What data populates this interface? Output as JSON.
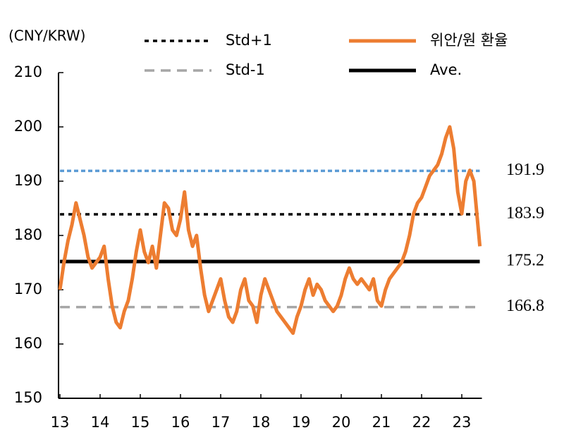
{
  "chart_data": {
    "type": "line",
    "y_label": "(CNY/KRW)",
    "xlim": [
      13,
      23.5
    ],
    "xticks": [
      13,
      14,
      15,
      16,
      17,
      18,
      19,
      20,
      21,
      22,
      23
    ],
    "ylim": [
      150,
      210
    ],
    "yticks": [
      150,
      160,
      170,
      180,
      190,
      200,
      210
    ],
    "x": [
      13.0,
      13.1,
      13.2,
      13.3,
      13.4,
      13.5,
      13.6,
      13.7,
      13.8,
      13.9,
      14.0,
      14.1,
      14.2,
      14.3,
      14.4,
      14.5,
      14.6,
      14.7,
      14.8,
      14.9,
      15.0,
      15.1,
      15.2,
      15.3,
      15.4,
      15.5,
      15.6,
      15.7,
      15.8,
      15.9,
      16.0,
      16.1,
      16.2,
      16.3,
      16.4,
      16.5,
      16.6,
      16.7,
      16.8,
      16.9,
      17.0,
      17.1,
      17.2,
      17.3,
      17.4,
      17.5,
      17.6,
      17.7,
      17.8,
      17.9,
      18.0,
      18.1,
      18.2,
      18.3,
      18.4,
      18.5,
      18.6,
      18.7,
      18.8,
      18.9,
      19.0,
      19.1,
      19.2,
      19.3,
      19.4,
      19.5,
      19.6,
      19.7,
      19.8,
      19.9,
      20.0,
      20.1,
      20.2,
      20.3,
      20.4,
      20.5,
      20.6,
      20.7,
      20.8,
      20.9,
      21.0,
      21.1,
      21.2,
      21.3,
      21.4,
      21.5,
      21.6,
      21.7,
      21.8,
      21.9,
      22.0,
      22.1,
      22.2,
      22.3,
      22.4,
      22.5,
      22.6,
      22.7,
      22.8,
      22.9,
      23.0,
      23.1,
      23.2,
      23.3,
      23.4,
      23.45
    ],
    "series": [
      {
        "name": "위안/원 환율",
        "color": "#ed7d31",
        "values": [
          170,
          175,
          179,
          182,
          186,
          183,
          180,
          176,
          174,
          175,
          176,
          178,
          172,
          167,
          164,
          163,
          166,
          168,
          172,
          177,
          181,
          177,
          175,
          178,
          174,
          180,
          186,
          185,
          181,
          180,
          183,
          188,
          181,
          178,
          180,
          174,
          169,
          166,
          168,
          170,
          172,
          168,
          165,
          164,
          166,
          170,
          172,
          168,
          167,
          164,
          169,
          172,
          170,
          168,
          166,
          165,
          164,
          163,
          162,
          165,
          167,
          170,
          172,
          169,
          171,
          170,
          168,
          167,
          166,
          167,
          169,
          172,
          174,
          172,
          171,
          172,
          171,
          170,
          172,
          168,
          167,
          170,
          172,
          173,
          174,
          175,
          177,
          180,
          184,
          186,
          187,
          189,
          191,
          192,
          193,
          195,
          198,
          200,
          196,
          188,
          184,
          190,
          192,
          190,
          182,
          178
        ]
      }
    ],
    "hlines": [
      {
        "name": "Std+1",
        "value": 183.9,
        "color": "#000000",
        "dash": "6 6"
      },
      {
        "name": "Std-1",
        "value": 166.8,
        "color": "#a6a6a6",
        "dash": "14 9"
      },
      {
        "name": "Ave.",
        "value": 175.2,
        "color": "#000000",
        "dash": "none"
      },
      {
        "value": 191.9,
        "color": "#5b9bd5",
        "dash": "6 4"
      }
    ]
  }
}
